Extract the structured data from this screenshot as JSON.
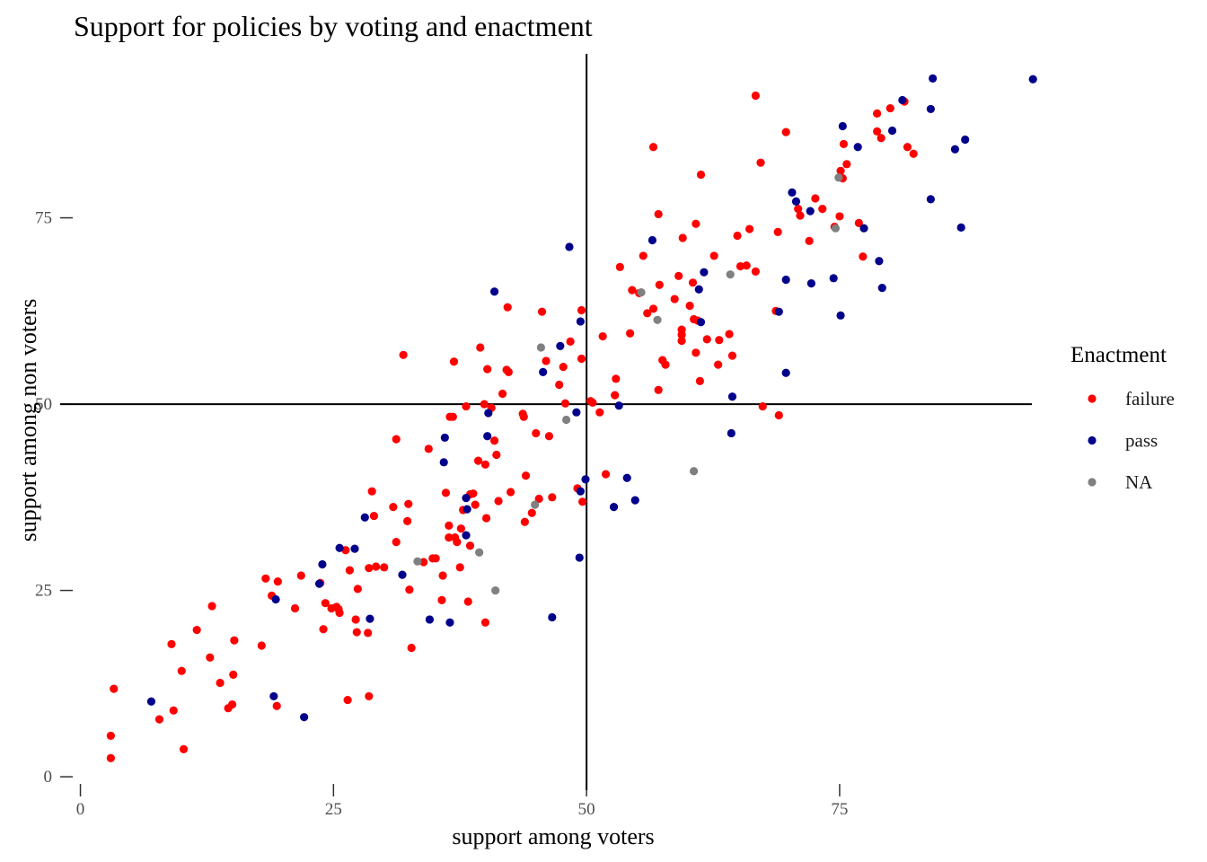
{
  "chart_data": {
    "type": "scatter",
    "title": "Support for policies by voting and enactment",
    "xlabel": "support among voters",
    "ylabel": "support among non voters",
    "xlim": [
      -2,
      95.5
    ],
    "ylim": [
      -1.8,
      97
    ],
    "x_ticks": [
      0,
      25,
      50,
      75
    ],
    "y_ticks": [
      0,
      25,
      50,
      75
    ],
    "reference_lines": {
      "vertical_x": 50,
      "horizontal_y": 50
    },
    "legend": {
      "title": "Enactment",
      "position": "right",
      "entries": [
        {
          "label": "failure",
          "color": "#ff0000"
        },
        {
          "label": "pass",
          "color": "#00008b"
        },
        {
          "label": "NA",
          "color": "#808080"
        }
      ]
    },
    "grid": false,
    "series": [
      {
        "name": "failure",
        "color": "#ff0000",
        "points": [
          [
            3,
            2.5
          ],
          [
            3,
            5.5
          ],
          [
            3.3,
            11.8
          ],
          [
            7.8,
            7.7
          ],
          [
            9,
            17.8
          ],
          [
            9.2,
            8.9
          ],
          [
            10,
            14.2
          ],
          [
            10.2,
            3.7
          ],
          [
            11.5,
            19.7
          ],
          [
            12.8,
            16
          ],
          [
            13,
            22.9
          ],
          [
            13.8,
            12.6
          ],
          [
            14.6,
            9.2
          ],
          [
            15,
            9.7
          ],
          [
            15.1,
            13.7
          ],
          [
            15.2,
            18.3
          ],
          [
            17.9,
            17.6
          ],
          [
            18.3,
            26.6
          ],
          [
            18.9,
            24.3
          ],
          [
            19.5,
            26.2
          ],
          [
            19.4,
            9.5
          ],
          [
            21.2,
            22.6
          ],
          [
            21.8,
            27
          ],
          [
            23.7,
            26
          ],
          [
            24,
            19.8
          ],
          [
            24.2,
            23.3
          ],
          [
            24.8,
            22.6
          ],
          [
            25.3,
            22.8
          ],
          [
            25.5,
            22.5
          ],
          [
            25.6,
            22
          ],
          [
            26.2,
            30.4
          ],
          [
            26.4,
            10.3
          ],
          [
            26.6,
            27.7
          ],
          [
            27.2,
            21.1
          ],
          [
            27.3,
            19.4
          ],
          [
            27.4,
            25.2
          ],
          [
            28.4,
            19.3
          ],
          [
            28.5,
            28
          ],
          [
            28.5,
            10.8
          ],
          [
            28.8,
            38.3
          ],
          [
            29,
            35
          ],
          [
            29.2,
            28.2
          ],
          [
            30,
            28.1
          ],
          [
            30.9,
            36.2
          ],
          [
            31.2,
            31.5
          ],
          [
            31.2,
            45.3
          ],
          [
            31.9,
            56.6
          ],
          [
            32.3,
            34.3
          ],
          [
            32.4,
            36.6
          ],
          [
            32.5,
            25.1
          ],
          [
            32.7,
            17.3
          ],
          [
            33.9,
            28.8
          ],
          [
            34.4,
            44
          ],
          [
            34.8,
            29.3
          ],
          [
            35.1,
            29.3
          ],
          [
            35.7,
            23.7
          ],
          [
            35.8,
            27
          ],
          [
            36.1,
            38.1
          ],
          [
            36.4,
            32.1
          ],
          [
            36.4,
            33.7
          ],
          [
            36.5,
            48.3
          ],
          [
            36.8,
            48.3
          ],
          [
            36.9,
            55.7
          ],
          [
            37,
            32.1
          ],
          [
            37.2,
            31.5
          ],
          [
            37.5,
            28.1
          ],
          [
            37.6,
            33.3
          ],
          [
            37.8,
            35.8
          ],
          [
            38.1,
            49.7
          ],
          [
            38.3,
            23.5
          ],
          [
            38.5,
            37.9
          ],
          [
            38.5,
            31
          ],
          [
            38.8,
            38
          ],
          [
            39,
            36.5
          ],
          [
            39.3,
            42.4
          ],
          [
            39.5,
            57.6
          ],
          [
            39.9,
            50
          ],
          [
            40,
            41.9
          ],
          [
            40,
            20.7
          ],
          [
            40.1,
            34.7
          ],
          [
            40.2,
            54.7
          ],
          [
            40.6,
            49.5
          ],
          [
            40.9,
            45.1
          ],
          [
            41.1,
            43.2
          ],
          [
            41.3,
            37
          ],
          [
            41.7,
            51.4
          ],
          [
            42.1,
            54.6
          ],
          [
            42.2,
            63
          ],
          [
            42.3,
            54.3
          ],
          [
            42.5,
            38.2
          ],
          [
            43.7,
            48.7
          ],
          [
            43.8,
            48.3
          ],
          [
            43.9,
            34.2
          ],
          [
            44,
            40.4
          ],
          [
            44.6,
            35.4
          ],
          [
            45,
            46.1
          ],
          [
            45.3,
            37.3
          ],
          [
            45.6,
            62.4
          ],
          [
            46,
            55.8
          ],
          [
            46.3,
            45.7
          ],
          [
            46.6,
            37.5
          ],
          [
            47.3,
            52.6
          ],
          [
            47.7,
            55
          ],
          [
            47.9,
            50.1
          ],
          [
            48.4,
            58.4
          ],
          [
            49.1,
            38.7
          ],
          [
            49.5,
            62.6
          ],
          [
            49.5,
            56.1
          ],
          [
            49.6,
            36.9
          ],
          [
            50.4,
            50.4
          ],
          [
            50.6,
            50.2
          ],
          [
            51.3,
            48.9
          ],
          [
            51.6,
            59.1
          ],
          [
            51.9,
            40.6
          ],
          [
            52.8,
            51.2
          ],
          [
            52.9,
            53.4
          ],
          [
            53.3,
            68.4
          ],
          [
            54.3,
            59.5
          ],
          [
            54.5,
            65.3
          ],
          [
            55.2,
            64.9
          ],
          [
            55.6,
            69.9
          ],
          [
            56,
            62.2
          ],
          [
            56.6,
            62.8
          ],
          [
            56.6,
            84.5
          ],
          [
            57.1,
            75.5
          ],
          [
            57.1,
            51.9
          ],
          [
            57.2,
            66
          ],
          [
            57.5,
            55.9
          ],
          [
            57.8,
            55.3
          ],
          [
            58.7,
            64.1
          ],
          [
            59.1,
            67.2
          ],
          [
            59.4,
            60
          ],
          [
            59.4,
            59.3
          ],
          [
            59.4,
            58.5
          ],
          [
            59.5,
            72.3
          ],
          [
            60.2,
            63.2
          ],
          [
            60.5,
            66.3
          ],
          [
            60.6,
            61.4
          ],
          [
            60.8,
            74.2
          ],
          [
            60.8,
            56.9
          ],
          [
            61,
            61.2
          ],
          [
            61.2,
            53.1
          ],
          [
            61.3,
            80.8
          ],
          [
            61.9,
            58.7
          ],
          [
            62.6,
            69.9
          ],
          [
            63,
            55.3
          ],
          [
            63.1,
            58.6
          ],
          [
            64.1,
            59.4
          ],
          [
            64.4,
            56.5
          ],
          [
            64.9,
            72.6
          ],
          [
            65.2,
            68.5
          ],
          [
            65.8,
            68.6
          ],
          [
            66.1,
            73.5
          ],
          [
            66.7,
            67.8
          ],
          [
            66.7,
            91.4
          ],
          [
            67.2,
            82.4
          ],
          [
            67.4,
            49.7
          ],
          [
            68.7,
            62.5
          ],
          [
            68.9,
            73.1
          ],
          [
            69,
            48.5
          ],
          [
            69.7,
            86.5
          ],
          [
            70.9,
            76.2
          ],
          [
            71.1,
            75.3
          ],
          [
            72,
            71.9
          ],
          [
            72.6,
            77.6
          ],
          [
            73.3,
            76.2
          ],
          [
            74.5,
            73.8
          ],
          [
            75,
            75.2
          ],
          [
            75.1,
            81.3
          ],
          [
            75.3,
            80.3
          ],
          [
            75.4,
            84.9
          ],
          [
            75.7,
            82.2
          ],
          [
            76.9,
            74.3
          ],
          [
            77.3,
            69.8
          ],
          [
            78.7,
            89
          ],
          [
            78.7,
            86.6
          ],
          [
            79.1,
            85.7
          ],
          [
            80,
            89.7
          ],
          [
            81.4,
            90.6
          ],
          [
            81.7,
            84.5
          ],
          [
            82.3,
            83.6
          ]
        ]
      },
      {
        "name": "pass",
        "color": "#00008b",
        "points": [
          [
            7,
            10.1
          ],
          [
            19.1,
            10.8
          ],
          [
            19.3,
            23.8
          ],
          [
            22.1,
            8
          ],
          [
            23.6,
            25.9
          ],
          [
            23.9,
            28.5
          ],
          [
            25.6,
            30.7
          ],
          [
            27.1,
            30.6
          ],
          [
            28.1,
            34.8
          ],
          [
            28.6,
            21.2
          ],
          [
            31.8,
            27.1
          ],
          [
            34.5,
            21.1
          ],
          [
            35.9,
            42.2
          ],
          [
            36,
            45.5
          ],
          [
            36.5,
            20.7
          ],
          [
            38.1,
            32.4
          ],
          [
            38.1,
            37.4
          ],
          [
            38.2,
            35.9
          ],
          [
            40.2,
            45.7
          ],
          [
            40.3,
            48.8
          ],
          [
            40.9,
            65.1
          ],
          [
            45.7,
            54.3
          ],
          [
            46.6,
            21.4
          ],
          [
            47.4,
            57.8
          ],
          [
            48.3,
            71.1
          ],
          [
            49,
            48.9
          ],
          [
            49.3,
            29.4
          ],
          [
            49.4,
            61.1
          ],
          [
            49.4,
            38.3
          ],
          [
            49.9,
            39.9
          ],
          [
            52.7,
            36.2
          ],
          [
            53.2,
            49.8
          ],
          [
            54,
            40.1
          ],
          [
            54.8,
            37.1
          ],
          [
            56.5,
            72
          ],
          [
            61.1,
            65.4
          ],
          [
            61.3,
            61
          ],
          [
            61.6,
            67.7
          ],
          [
            64.3,
            46.1
          ],
          [
            64.4,
            51
          ],
          [
            69,
            62.4
          ],
          [
            69.7,
            66.7
          ],
          [
            69.7,
            54.2
          ],
          [
            70.3,
            78.4
          ],
          [
            70.7,
            77.2
          ],
          [
            72.1,
            75.9
          ],
          [
            72.2,
            66.2
          ],
          [
            74.4,
            66.9
          ],
          [
            75.1,
            61.9
          ],
          [
            75.3,
            87.3
          ],
          [
            76.8,
            84.5
          ],
          [
            77.4,
            73.6
          ],
          [
            78.9,
            69.2
          ],
          [
            79.2,
            65.6
          ],
          [
            80.2,
            86.7
          ],
          [
            81.2,
            90.8
          ],
          [
            84,
            89.6
          ],
          [
            84,
            77.5
          ],
          [
            84.2,
            93.7
          ],
          [
            86.4,
            84.2
          ],
          [
            87,
            73.7
          ],
          [
            87.4,
            85.5
          ],
          [
            94.1,
            93.6
          ]
        ]
      },
      {
        "name": "NA",
        "color": "#808080",
        "points": [
          [
            33.3,
            28.9
          ],
          [
            39.4,
            30.1
          ],
          [
            41,
            25
          ],
          [
            44.9,
            36.5
          ],
          [
            45.5,
            57.6
          ],
          [
            48,
            47.9
          ],
          [
            55.4,
            65
          ],
          [
            57,
            61.3
          ],
          [
            60.6,
            41
          ],
          [
            64.2,
            67.4
          ],
          [
            74.6,
            73.6
          ],
          [
            74.9,
            80.4
          ]
        ]
      }
    ]
  }
}
